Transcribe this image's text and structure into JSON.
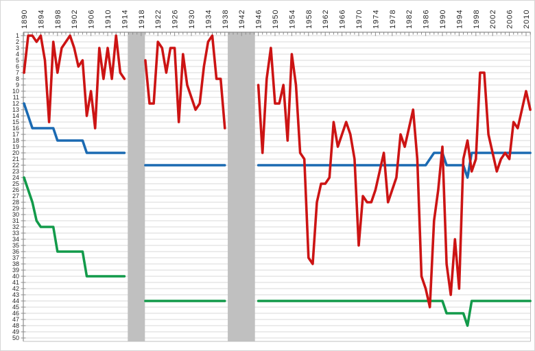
{
  "chart_data": {
    "type": "line",
    "title": "",
    "x_axis": {
      "position": "top",
      "start": 1890,
      "end": 2011,
      "label_step": 4,
      "labels": [
        1890,
        1894,
        1898,
        1902,
        1906,
        1910,
        1914,
        1918,
        1922,
        1926,
        1930,
        1934,
        1938,
        1942,
        1946,
        1950,
        1954,
        1958,
        1962,
        1966,
        1970,
        1974,
        1978,
        1982,
        1986,
        1990,
        1994,
        1998,
        2002,
        2006,
        2010
      ]
    },
    "y_axis": {
      "inverted": true,
      "min": 1,
      "max": 50,
      "tick_step": 1
    },
    "gaps": [
      {
        "from_year": 1914.8,
        "to_year": 1918.9
      },
      {
        "from_year": 1938.7,
        "to_year": 1945.2
      }
    ],
    "series": [
      {
        "name": "green",
        "color": "#129a4a",
        "segments": [
          {
            "start_year": 1890,
            "values": [
              24,
              26,
              28,
              31,
              32,
              32,
              32,
              32,
              36,
              36,
              36,
              36,
              36,
              36,
              36,
              40,
              40,
              40,
              40,
              40,
              40,
              40,
              40,
              40,
              40
            ]
          },
          {
            "start_year": 1919,
            "values": [
              44,
              44,
              44,
              44,
              44,
              44,
              44,
              44,
              44,
              44,
              44,
              44,
              44,
              44,
              44,
              44,
              44,
              44,
              44,
              44
            ]
          },
          {
            "start_year": 1946,
            "values": [
              44,
              44,
              44,
              44,
              44,
              44,
              44,
              44,
              44,
              44,
              44,
              44,
              44,
              44,
              44,
              44,
              44,
              44,
              44,
              44,
              44,
              44,
              44,
              44,
              44,
              44,
              44,
              44,
              44,
              44,
              44,
              44,
              44,
              44,
              44,
              44,
              44,
              44,
              44,
              44,
              44,
              44,
              44,
              44,
              44,
              46,
              46,
              46,
              46,
              46,
              48,
              44,
              44,
              44,
              44,
              44,
              44,
              44,
              44,
              44,
              44,
              44,
              44,
              44,
              44,
              44
            ]
          }
        ]
      },
      {
        "name": "blue",
        "color": "#1b6ab2",
        "segments": [
          {
            "start_year": 1890,
            "values": [
              12,
              14,
              16,
              16,
              16,
              16,
              16,
              16,
              18,
              18,
              18,
              18,
              18,
              18,
              18,
              20,
              20,
              20,
              20,
              20,
              20,
              20,
              20,
              20,
              20
            ]
          },
          {
            "start_year": 1919,
            "values": [
              22,
              22,
              22,
              22,
              22,
              22,
              22,
              22,
              22,
              22,
              22,
              22,
              22,
              22,
              22,
              22,
              22,
              22,
              22,
              22
            ]
          },
          {
            "start_year": 1946,
            "values": [
              22,
              22,
              22,
              22,
              22,
              22,
              22,
              22,
              22,
              22,
              22,
              22,
              22,
              22,
              22,
              22,
              22,
              22,
              22,
              22,
              22,
              22,
              22,
              22,
              22,
              22,
              22,
              22,
              22,
              22,
              22,
              22,
              22,
              22,
              22,
              22,
              22,
              22,
              22,
              22,
              22,
              21,
              20,
              20,
              20,
              22,
              22,
              22,
              22,
              22,
              24,
              20,
              20,
              20,
              20,
              20,
              20,
              20,
              20,
              20,
              20,
              20,
              20,
              20,
              20,
              20
            ]
          }
        ]
      },
      {
        "name": "red",
        "color": "#cc1414",
        "segments": [
          {
            "start_year": 1890,
            "values": [
              7,
              1,
              1,
              2,
              1,
              5,
              15,
              2,
              7,
              3,
              2,
              1,
              3,
              6,
              5,
              14,
              10,
              16,
              3,
              8,
              3,
              8,
              1,
              7,
              8
            ]
          },
          {
            "start_year": 1919,
            "values": [
              5,
              12,
              12,
              2,
              3,
              7,
              3,
              3,
              15,
              4,
              9,
              11,
              13,
              12,
              6,
              2,
              1,
              8,
              8,
              16
            ]
          },
          {
            "start_year": 1946,
            "values": [
              9,
              20,
              8,
              3,
              12,
              12,
              9,
              18,
              4,
              9,
              20,
              21,
              37,
              38,
              28,
              25,
              25,
              24,
              15,
              19,
              17,
              15,
              17,
              21,
              35,
              27,
              28,
              28,
              26,
              23,
              20,
              28,
              26,
              24,
              17,
              19,
              16,
              13,
              21,
              40,
              42,
              45,
              31,
              26,
              19,
              38,
              43,
              34,
              42,
              21,
              18,
              23,
              21,
              7,
              7,
              17,
              20,
              23,
              21,
              20,
              21,
              15,
              16,
              13,
              10,
              13
            ]
          }
        ]
      }
    ],
    "colors": {
      "band": "#c0c0c0",
      "gridline": "#d9d9d9",
      "axis": "#8c8c8c",
      "border": "#bfbfbf",
      "text": "#262626",
      "background": "#ffffff"
    },
    "legend": {
      "visible": false
    }
  }
}
